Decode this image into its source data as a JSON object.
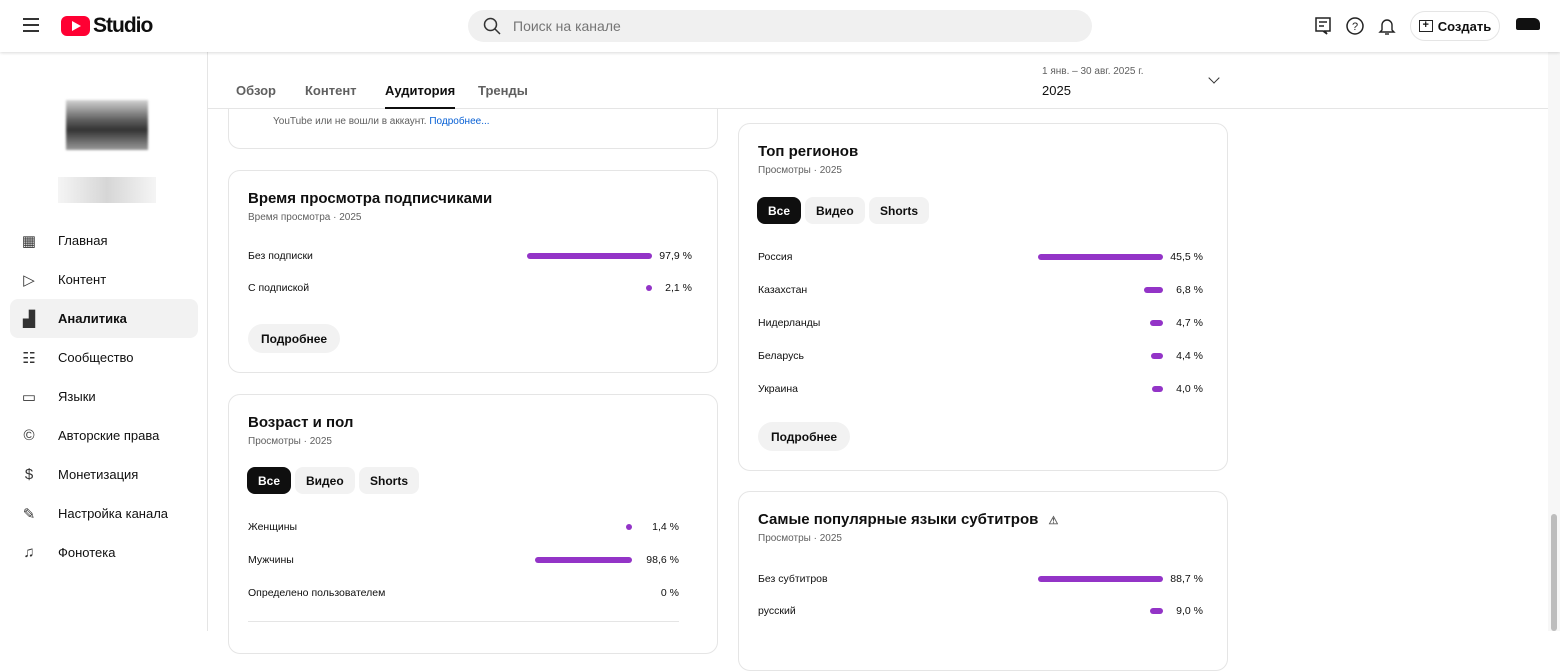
{
  "header": {
    "logo_text": "Studio",
    "search_placeholder": "Поиск на канале",
    "create_label": "Создать"
  },
  "sidebar": {
    "items": [
      {
        "label": "Главная",
        "icon": "dashboard-icon"
      },
      {
        "label": "Контент",
        "icon": "content-icon"
      },
      {
        "label": "Аналитика",
        "icon": "analytics-icon",
        "active": true
      },
      {
        "label": "Сообщество",
        "icon": "community-icon"
      },
      {
        "label": "Языки",
        "icon": "subtitles-icon"
      },
      {
        "label": "Авторские права",
        "icon": "copyright-icon"
      },
      {
        "label": "Монетизация",
        "icon": "dollar-icon"
      },
      {
        "label": "Настройка канала",
        "icon": "magic-wand-icon"
      },
      {
        "label": "Фонотека",
        "icon": "audio-library-icon"
      }
    ]
  },
  "tabs": [
    {
      "label": "Обзор"
    },
    {
      "label": "Контент"
    },
    {
      "label": "Аудитория",
      "active": true
    },
    {
      "label": "Тренды"
    }
  ],
  "date": {
    "range": "1 янв. – 30 авг. 2025 г.",
    "label": "2025"
  },
  "partial_card": {
    "text": "YouTube или не вошли в аккаунт.",
    "link": "Подробнее..."
  },
  "watch_subs": {
    "title": "Время просмотра подписчиками",
    "subtitle": "Время просмотра · 2025",
    "rows": [
      {
        "label": "Без подписки",
        "value": 97.9,
        "text": "97,9 %"
      },
      {
        "label": "С подпиской",
        "value": 2.1,
        "text": "2,1 %"
      }
    ],
    "more": "Подробнее"
  },
  "age_gender": {
    "title": "Возраст и пол",
    "subtitle": "Просмотры · 2025",
    "chips": [
      "Все",
      "Видео",
      "Shorts"
    ],
    "rows": [
      {
        "label": "Женщины",
        "value": 1.4,
        "text": "1,4 %"
      },
      {
        "label": "Мужчины",
        "value": 98.6,
        "text": "98,6 %"
      },
      {
        "label": "Определено пользователем",
        "value": 0,
        "text": "0 %"
      }
    ]
  },
  "regions": {
    "title": "Топ регионов",
    "subtitle": "Просмотры · 2025",
    "chips": [
      "Все",
      "Видео",
      "Shorts"
    ],
    "rows": [
      {
        "label": "Россия",
        "value": 45.5,
        "text": "45,5 %"
      },
      {
        "label": "Казахстан",
        "value": 6.8,
        "text": "6,8 %"
      },
      {
        "label": "Нидерланды",
        "value": 4.7,
        "text": "4,7 %"
      },
      {
        "label": "Беларусь",
        "value": 4.4,
        "text": "4,4 %"
      },
      {
        "label": "Украина",
        "value": 4.0,
        "text": "4,0 %"
      }
    ],
    "more": "Подробнее"
  },
  "subtitles": {
    "title": "Самые популярные языки субтитров",
    "subtitle": "Просмотры · 2025",
    "rows": [
      {
        "label": "Без субтитров",
        "value": 88.7,
        "text": "88,7 %"
      },
      {
        "label": "русский",
        "value": 9.0,
        "text": "9,0 %"
      }
    ]
  },
  "colors": {
    "bar": "#9334c7",
    "accent": "#ff0033",
    "link": "#065fd4"
  }
}
